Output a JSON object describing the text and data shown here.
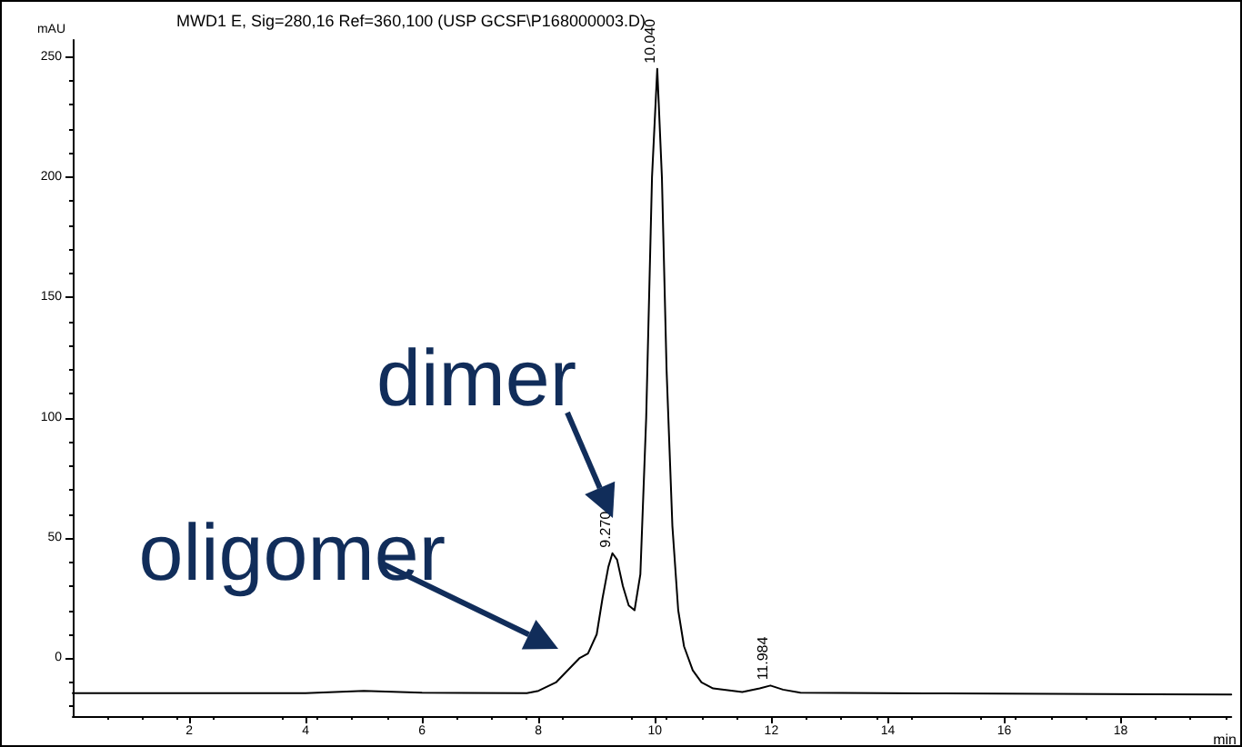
{
  "chart_data": {
    "type": "line",
    "title": "MWD1 E, Sig=280,16 Ref=360,100 (USP GCSF\\P168000003.D)",
    "ylabel": "mAU",
    "xlabel": "min",
    "x": [
      0,
      2,
      4,
      5,
      6,
      7.8,
      8.0,
      8.3,
      8.5,
      8.7,
      8.85,
      9.0,
      9.1,
      9.2,
      9.27,
      9.35,
      9.45,
      9.55,
      9.65,
      9.75,
      9.85,
      9.95,
      10.04,
      10.12,
      10.2,
      10.3,
      10.4,
      10.5,
      10.65,
      10.8,
      11.0,
      11.5,
      11.8,
      11.984,
      12.2,
      12.5,
      15,
      19.9
    ],
    "series": [
      {
        "color": "#000000",
        "values": [
          -14.5,
          -14.5,
          -14.5,
          -13.5,
          -14.3,
          -14.5,
          -13.5,
          -10,
          -5,
          0,
          2,
          10,
          25,
          38,
          43.7,
          41,
          30,
          22,
          20,
          35,
          100,
          200,
          245,
          200,
          120,
          55,
          20,
          5,
          -5,
          -10,
          -12.5,
          -14,
          -12.5,
          -11.3,
          -13,
          -14.3,
          -14.6,
          -15
        ]
      }
    ],
    "xlim": [
      0,
      19.9
    ],
    "xticks": [
      2,
      4,
      6,
      8,
      10,
      12,
      14,
      16,
      18
    ],
    "ylim": [
      -24,
      257
    ],
    "yticks": [
      0,
      50,
      100,
      150,
      200,
      250
    ],
    "grid": false,
    "marker": "none",
    "line_style": "solid",
    "annotations": [
      {
        "text": "10.040",
        "x": 10.04,
        "y": 245
      },
      {
        "text": "9.270",
        "x": 9.27,
        "y": 43.7
      },
      {
        "text": "11.984",
        "x": 11.984,
        "y": -11.3
      },
      "dimer",
      "oligomer"
    ]
  }
}
